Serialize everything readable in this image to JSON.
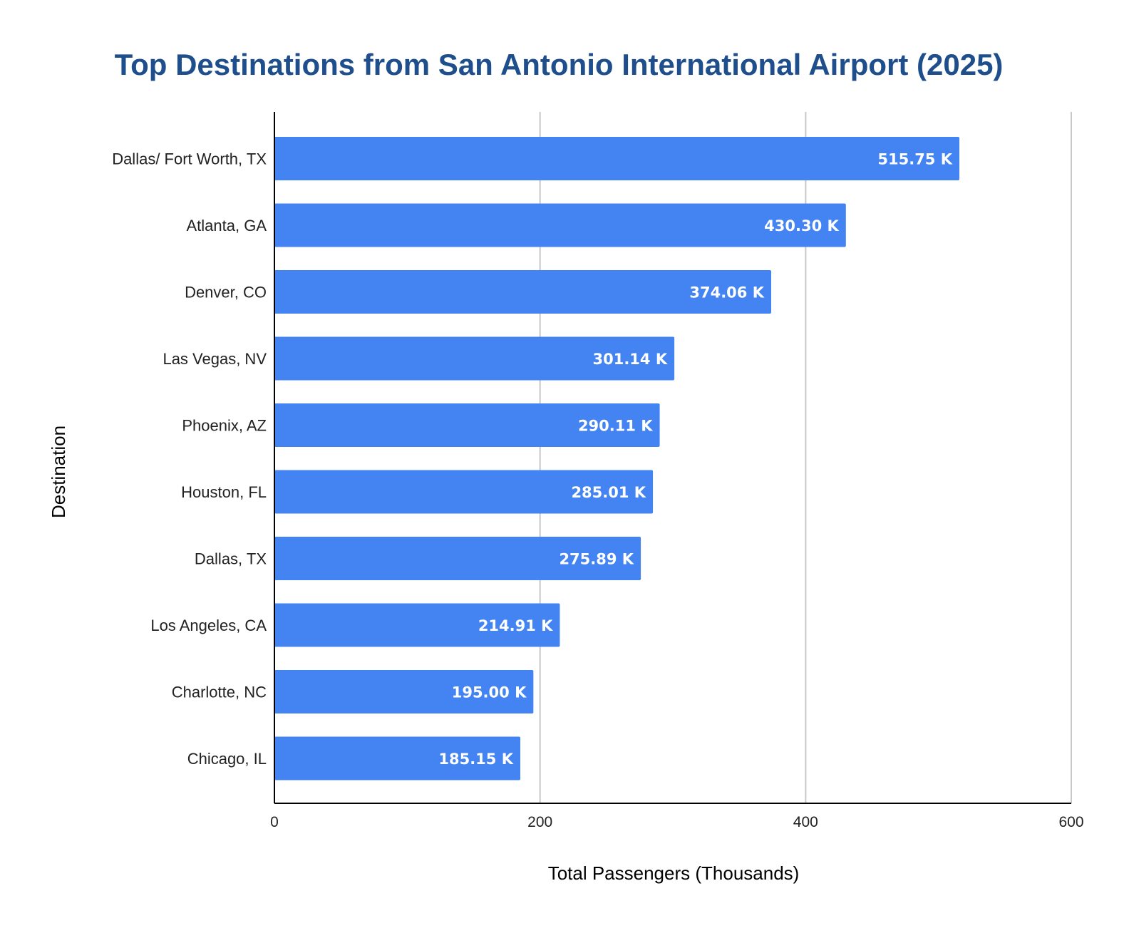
{
  "colors": {
    "title": "#1f4e8c",
    "bar": "#4384f2",
    "data_label": "#ffffff",
    "grid": "#c8c8c8",
    "axis": "#000000"
  },
  "chart_data": {
    "type": "bar",
    "orientation": "horizontal",
    "title": "Top Destinations from San Antonio International Airport (2025)",
    "xlabel": "Total Passengers (Thousands)",
    "ylabel": "Destination",
    "xlim": [
      0,
      600
    ],
    "x_ticks": [
      0,
      200,
      400,
      600
    ],
    "x_tick_labels": [
      "0",
      "200",
      "400",
      "600"
    ],
    "grid": true,
    "legend": "none",
    "categories": [
      "Dallas/ Fort Worth, TX",
      "Atlanta, GA",
      "Denver, CO",
      "Las Vegas, NV",
      "Phoenix, AZ",
      "Houston, FL",
      "Dallas, TX",
      "Los Angeles, CA",
      "Charlotte, NC",
      "Chicago, IL"
    ],
    "values": [
      515.75,
      430.3,
      374.06,
      301.14,
      290.11,
      285.01,
      275.89,
      214.91,
      195.0,
      185.15
    ],
    "data_labels": [
      "515.75 K",
      "430.30 K",
      "374.06 K",
      "301.14 K",
      "290.11 K",
      "285.01 K",
      "275.89 K",
      "214.91 K",
      "195.00 K",
      "185.15 K"
    ]
  }
}
